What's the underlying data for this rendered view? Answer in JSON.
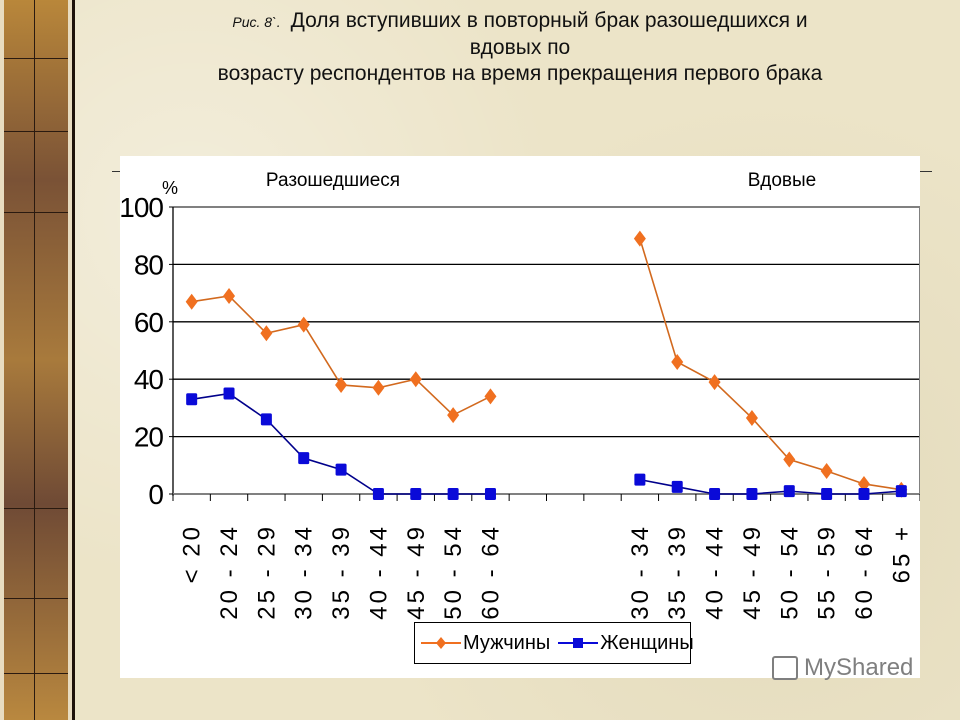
{
  "title": {
    "fig_label": "Рис. 8`.",
    "line1": "Доля вступивших в повторный брак разошедшихся и",
    "line2": "вдовых по",
    "line3": "возрасту респондентов на время прекращения первого брака"
  },
  "panels": {
    "left": "Разошедшиеся",
    "right": "Вдовые"
  },
  "y_unit": "%",
  "legend": [
    {
      "label": "Мужчины",
      "color": "#f07020",
      "marker": "diamond"
    },
    {
      "label": "Женщины",
      "color": "#0a0ad8",
      "marker": "square"
    }
  ],
  "watermark": "MyShared",
  "chart_data": {
    "type": "line",
    "title": "Доля вступивших в повторный брак разошедшихся и вдовых по возрасту респондентов на время прекращения первого брака",
    "xlabel": "",
    "ylabel": "%",
    "ylim": [
      0,
      100
    ],
    "yticks": [
      0,
      20,
      40,
      60,
      80,
      100
    ],
    "grid": true,
    "legend_position": "bottom",
    "categories": [
      "< 20",
      "20 - 24",
      "25 - 29",
      "30 - 34",
      "35 - 39",
      "40 - 44",
      "45 - 49",
      "50 - 54",
      "60 - 64",
      "",
      "",
      "",
      "30 - 34",
      "35 - 39",
      "40 - 44",
      "45 - 49",
      "50 - 54",
      "55 - 59",
      "60 - 64",
      "65 +"
    ],
    "groups": [
      {
        "name": "Разошедшиеся",
        "categories": [
          "< 20",
          "20 - 24",
          "25 - 29",
          "30 - 34",
          "35 - 39",
          "40 - 44",
          "45 - 49",
          "50 - 54",
          "60 - 64"
        ]
      },
      {
        "name": "Вдовые",
        "categories": [
          "30 - 34",
          "35 - 39",
          "40 - 44",
          "45 - 49",
          "50 - 54",
          "55 - 59",
          "60 - 64",
          "65 +"
        ]
      }
    ],
    "series": [
      {
        "name": "Мужчины",
        "color": "#f07020",
        "values": [
          67,
          69,
          56,
          59,
          38,
          37,
          40,
          27.5,
          34,
          null,
          null,
          null,
          89,
          46,
          39,
          26.5,
          12,
          8,
          3.5,
          1.5
        ]
      },
      {
        "name": "Женщины",
        "color": "#0a0ad8",
        "values": [
          33,
          35,
          26,
          12.5,
          8.5,
          0,
          0,
          0,
          0,
          null,
          null,
          null,
          5,
          2.5,
          0,
          0,
          1,
          0,
          0,
          1
        ]
      }
    ]
  }
}
